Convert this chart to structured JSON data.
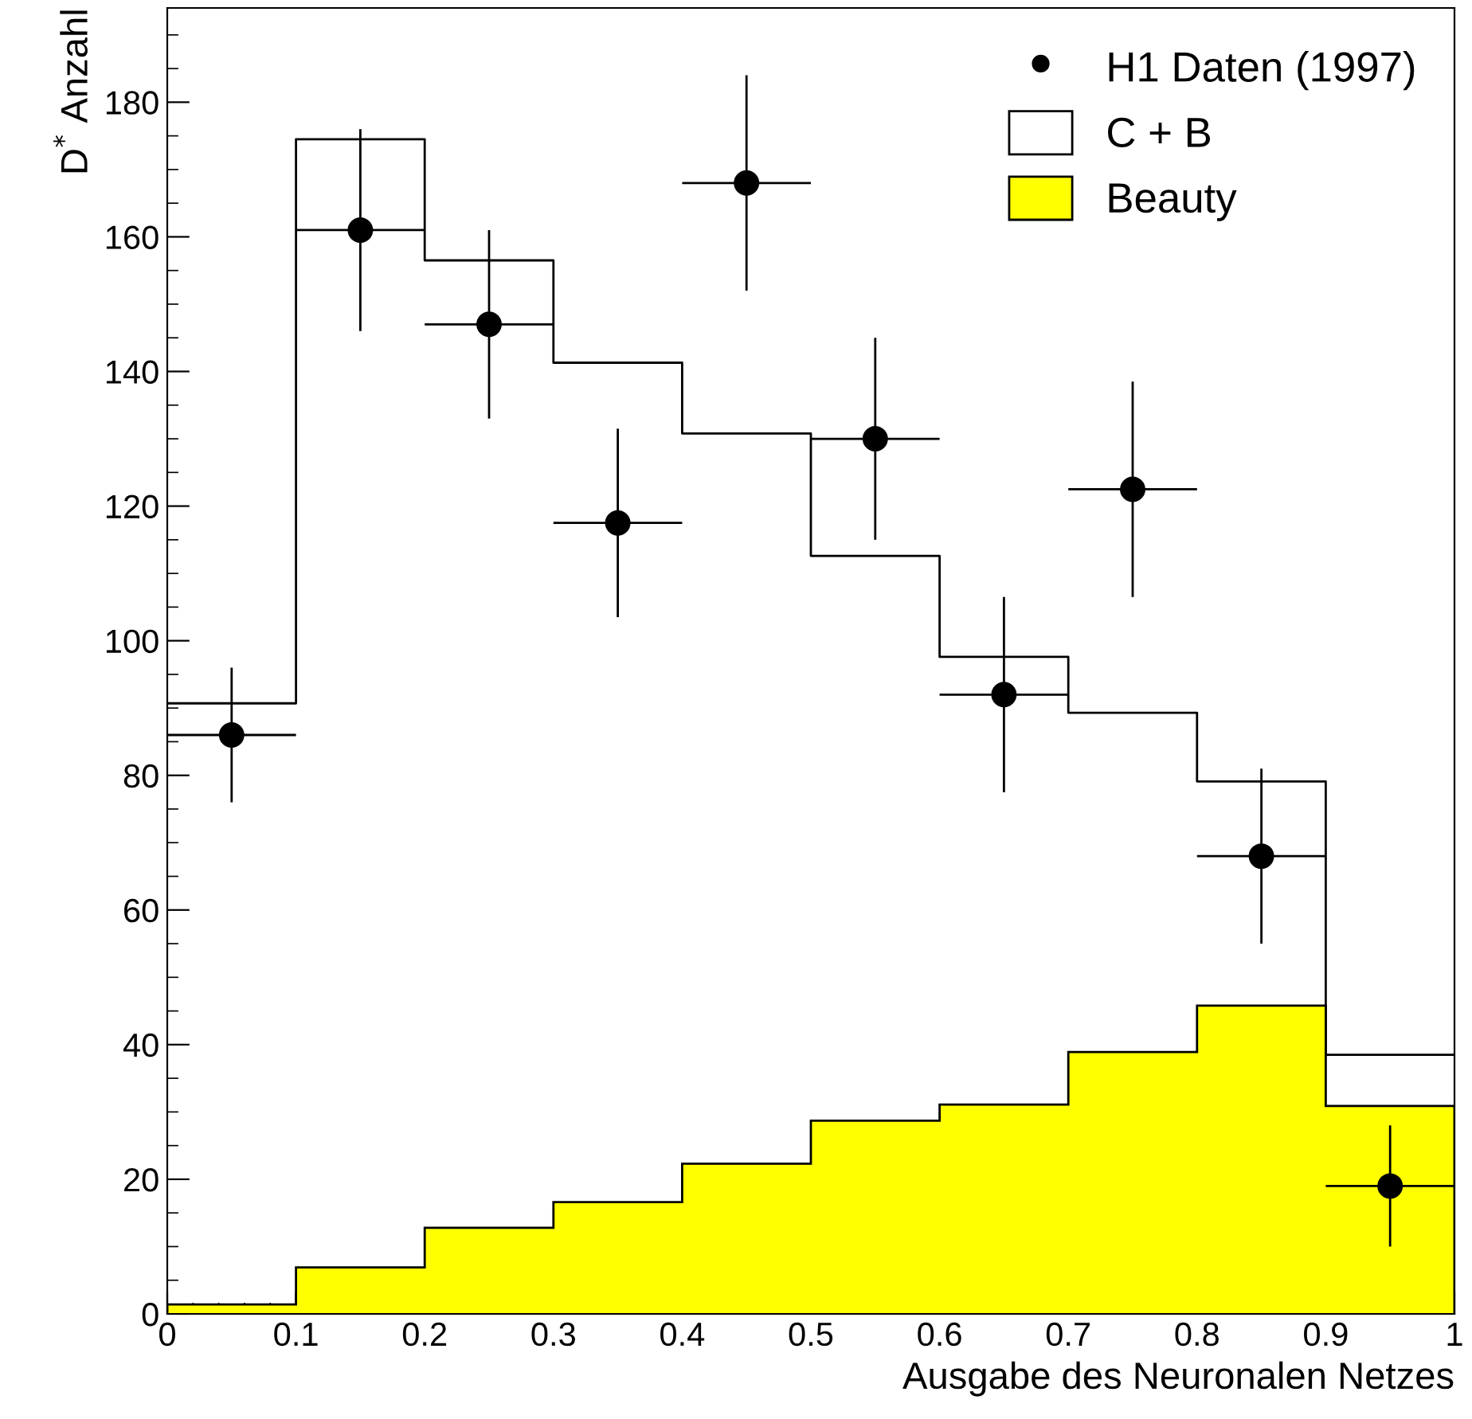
{
  "chart_data": {
    "type": "histogram",
    "xlabel": "Ausgabe des Neuronalen Netzes",
    "ylabel": "D$^{*}$ Anzahl",
    "bins": [
      0,
      0.1,
      0.2,
      0.3,
      0.4,
      0.5,
      0.6,
      0.7,
      0.8,
      0.9,
      1.0
    ],
    "series": [
      {
        "name": "H1 Daten (1997)",
        "type": "scatter",
        "marker": "circle",
        "color": "#000000",
        "x": [
          0.05,
          0.15,
          0.25,
          0.35,
          0.45,
          0.55,
          0.65,
          0.75,
          0.85,
          0.95
        ],
        "values": [
          86,
          161,
          147,
          117.5,
          168,
          130,
          92,
          122.5,
          68,
          19
        ],
        "errors": [
          10,
          15,
          14,
          14,
          16,
          15,
          14.5,
          16,
          13,
          9
        ],
        "xerrors": [
          0.05,
          0.05,
          0.05,
          0.05,
          0.05,
          0.05,
          0.05,
          0.05,
          0.05,
          0.05
        ]
      },
      {
        "name": "C + B",
        "type": "step",
        "marker": "none",
        "color": "#000000",
        "x": [
          0,
          0.1,
          0.2,
          0.3,
          0.4,
          0.5,
          0.6,
          0.7,
          0.8,
          0.9,
          1.0
        ],
        "values": [
          90.7,
          174.5,
          156.5,
          141.3,
          130.8,
          112.6,
          97.6,
          89.3,
          79.1,
          38.5,
          38.5
        ]
      },
      {
        "name": "Beauty",
        "color": "#ffff00",
        "values": [
          1.4,
          6.9,
          12.8,
          16.6,
          22.3,
          28.7,
          31.1,
          38.9,
          45.8,
          30.9
        ]
      }
    ],
    "xlim": [
      0,
      1
    ],
    "xticks": [
      0,
      0.1,
      0.2,
      0.3,
      0.4,
      0.5,
      0.6,
      0.7,
      0.8,
      0.9,
      {
        "value": 1.0,
        "label": "1"
      }
    ],
    "ylim": [
      0,
      194
    ],
    "yticks": [
      0,
      20,
      40,
      60,
      80,
      100,
      120,
      140,
      160,
      180
    ],
    "grid": false,
    "legend": "top right"
  }
}
